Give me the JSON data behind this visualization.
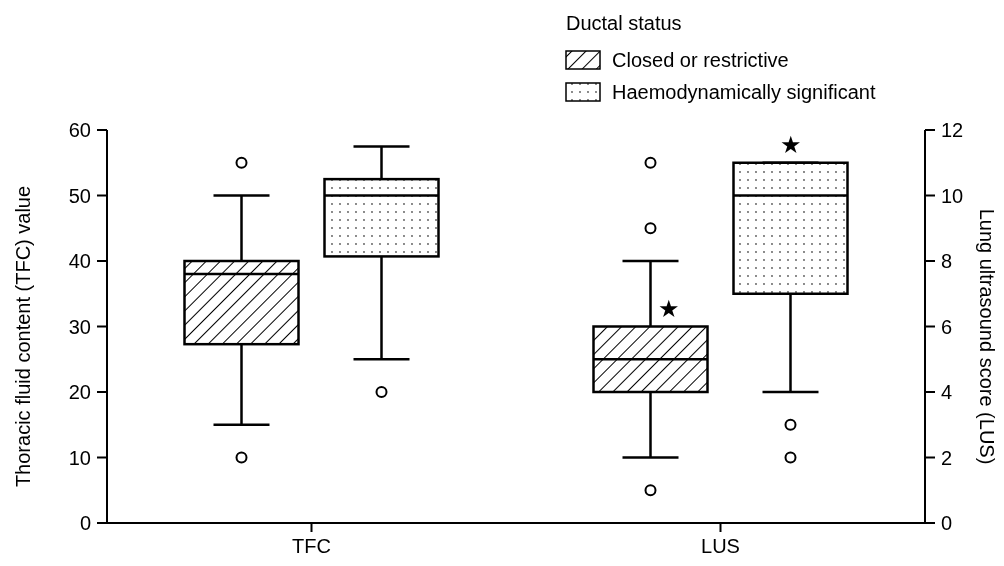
{
  "chart_data": {
    "type": "box",
    "legend_title": "Ductal status",
    "legend": "top right",
    "categories": [
      "TFC",
      "LUS"
    ],
    "ylabel": "Thoracic fluid content (TFC) value",
    "y2label": "Lung ultrasound score (LUS)",
    "ylim": [
      0,
      60
    ],
    "yticks": [
      0,
      10,
      20,
      30,
      40,
      50,
      60
    ],
    "y2lim": [
      0,
      12
    ],
    "y2ticks": [
      0,
      2,
      4,
      6,
      8,
      10,
      12
    ],
    "series": [
      {
        "name": "Closed or restrictive",
        "color": "#000000",
        "boxes": [
          {
            "low": 15,
            "q1": 27.3,
            "median": 38,
            "q3": 40,
            "high": 50,
            "outliers": [
              55,
              10
            ]
          },
          null
        ]
      },
      {
        "name": "Haemodynamically significant",
        "color": "#000000",
        "boxes": [
          {
            "low": 25,
            "q1": 40.7,
            "median": 50,
            "q3": 52.5,
            "high": 57.5,
            "outliers": [
              20
            ]
          },
          null
        ]
      },
      {
        "color": "#000000",
        "axis": "y2",
        "boxes": [
          null,
          {
            "low": 2,
            "q1": 4,
            "median": 5,
            "q3": 6,
            "high": 8,
            "outliers": [
              11,
              9,
              1
            ]
          }
        ]
      },
      {
        "color": "#000000",
        "axis": "y2",
        "boxes": [
          null,
          {
            "low": 4,
            "q1": 7,
            "median": 10,
            "q3": 11,
            "high": 11,
            "outliers": [
              3,
              2
            ]
          }
        ]
      }
    ],
    "annotations": [
      "★",
      "★"
    ]
  }
}
